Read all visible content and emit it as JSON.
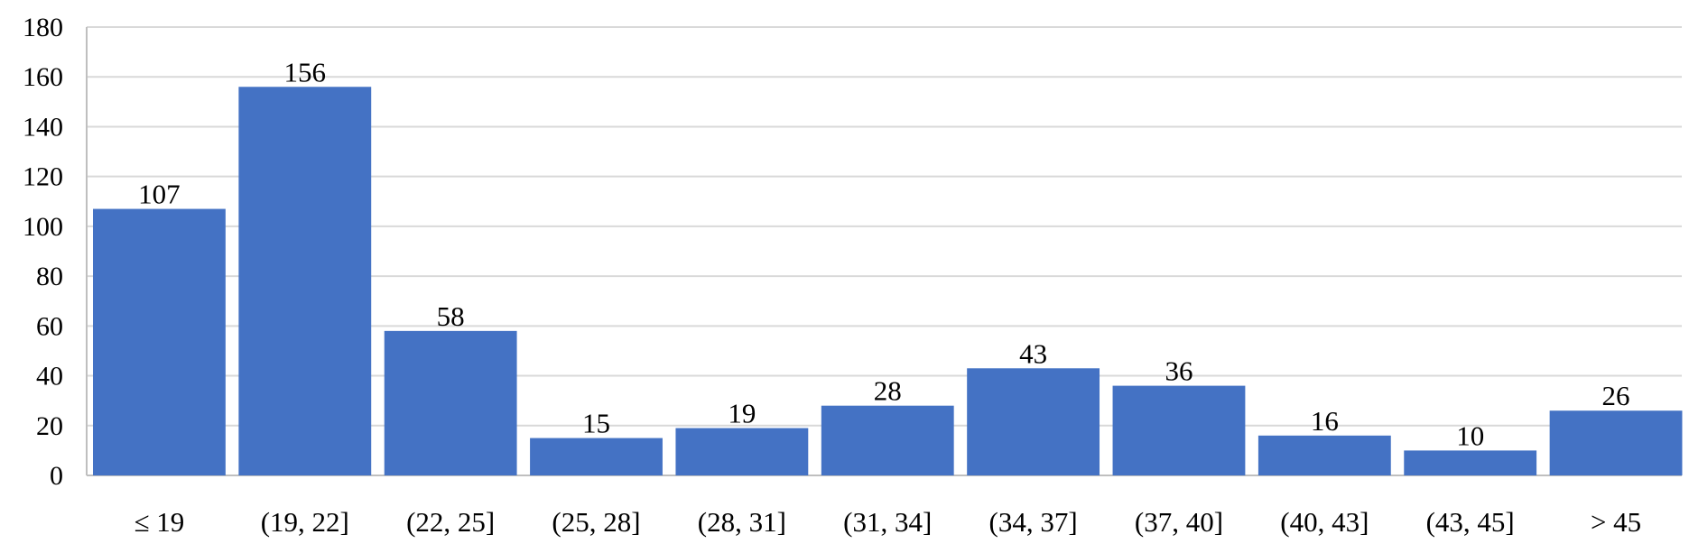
{
  "chart_data": {
    "type": "bar",
    "categories": [
      "≤ 19",
      "(19, 22]",
      "(22, 25]",
      "(25, 28]",
      "(28, 31]",
      "(31, 34]",
      "(34, 37]",
      "(37, 40]",
      "(40, 43]",
      "(43, 45]",
      "> 45"
    ],
    "values": [
      107,
      156,
      58,
      15,
      19,
      28,
      43,
      36,
      16,
      10,
      26
    ],
    "data_labels": [
      "107",
      "156",
      "58",
      "15",
      "19",
      "28",
      "43",
      "36",
      "16",
      "10",
      "26"
    ],
    "yticks": [
      0,
      20,
      40,
      60,
      80,
      100,
      120,
      140,
      160,
      180
    ],
    "ytick_labels": [
      "0",
      "20",
      "40",
      "60",
      "80",
      "100",
      "120",
      "140",
      "160",
      "180"
    ],
    "ylim": [
      0,
      180
    ],
    "title": "",
    "xlabel": "",
    "ylabel": "",
    "grid": true,
    "bar_color": "#4472C4",
    "grid_color": "#D9D9D9"
  }
}
